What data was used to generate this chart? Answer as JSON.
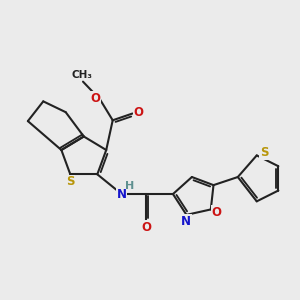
{
  "bg_color": "#EBEBEB",
  "bond_color": "#222222",
  "bond_lw": 1.5,
  "S_color": "#B8960A",
  "N_color": "#1414CC",
  "O_color": "#CC1414",
  "H_color": "#5F9090",
  "fs": 8.5,
  "figsize": [
    3.0,
    3.0
  ],
  "dpi": 100,
  "xlim": [
    -1.5,
    9.5
  ],
  "ylim": [
    -1.0,
    8.5
  ]
}
